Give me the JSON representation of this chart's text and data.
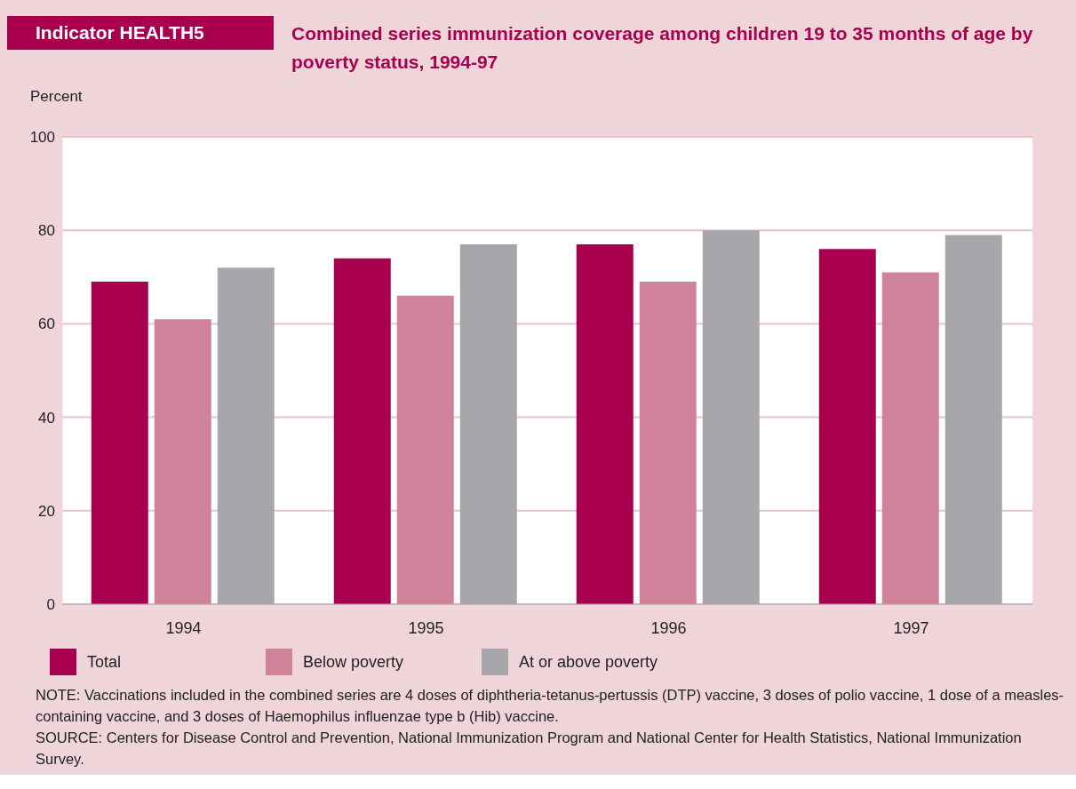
{
  "chart_data": {
    "type": "bar",
    "title": "Indicator HEALTH5",
    "subtitle": "Combined series immunization coverage among children 19 to 35 months of age by poverty status, 1994-97",
    "ylabel": "Percent",
    "categories": [
      "1994",
      "1995",
      "1996",
      "1997"
    ],
    "series": [
      {
        "name": "Total",
        "color": "#a8004f",
        "values": [
          69,
          74,
          77,
          76
        ]
      },
      {
        "name": "Below poverty",
        "color": "#d0829a",
        "values": [
          61,
          66,
          69,
          71
        ]
      },
      {
        "name": "At or above poverty",
        "color": "#a7a7ab",
        "values": [
          72,
          77,
          80,
          79
        ]
      }
    ],
    "ylim": [
      0,
      100
    ],
    "yticks": [
      0,
      20,
      40,
      60,
      80,
      100
    ],
    "grid": "y",
    "legend": "bottom",
    "annotations": [
      "NOTE:  Vaccinations included in the combined series are 4 doses of diphtheria-tetanus-pertussis (DTP) vaccine, 3 doses of polio vaccine, 1 dose of a measles-containing vaccine, and 3 doses of Haemophilus influenzae type b (Hib) vaccine.",
      "SOURCE: Centers for Disease Control and Prevention, National Immunization Program and National Center for Health Statistics, National Immunization Survey."
    ]
  }
}
